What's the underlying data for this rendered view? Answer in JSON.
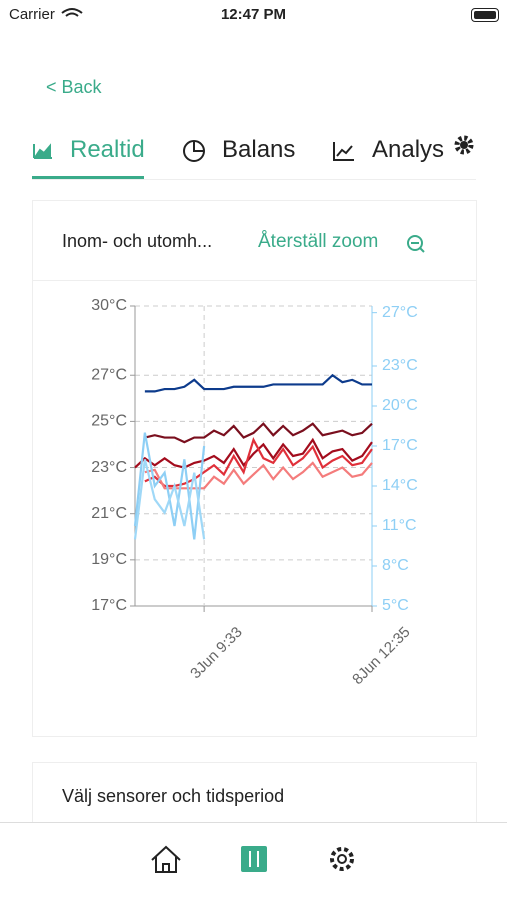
{
  "status_bar": {
    "carrier": "Carrier",
    "time": "12:47 PM"
  },
  "nav": {
    "back": "< Back"
  },
  "tabs": [
    "Realtid",
    "Balans",
    "Analys"
  ],
  "card": {
    "title": "Inom- och utomh...",
    "reset_zoom": "Återställ zoom"
  },
  "chart_data": {
    "type": "line",
    "categories": [
      null,
      null,
      null,
      null,
      null,
      null,
      null,
      "3Jun 9:33",
      null,
      null,
      null,
      null,
      null,
      null,
      null,
      null,
      null,
      null,
      null,
      null,
      null,
      null,
      null,
      null,
      "8Jun 12:35"
    ],
    "ylim": [
      17,
      30
    ],
    "yticks": [
      {
        "value": 17,
        "label": "17°C"
      },
      {
        "value": 19,
        "label": "19°C"
      },
      {
        "value": 21,
        "label": "21°C"
      },
      {
        "value": 23,
        "label": "23°C"
      },
      {
        "value": 25,
        "label": "25°C"
      },
      {
        "value": 27,
        "label": "27°C"
      },
      {
        "value": 30,
        "label": "30°C"
      }
    ],
    "y2lim": [
      5,
      27.5
    ],
    "y2ticks": [
      {
        "value": 5,
        "label": "5°C"
      },
      {
        "value": 8,
        "label": "8°C"
      },
      {
        "value": 11,
        "label": "11°C"
      },
      {
        "value": 14,
        "label": "14°C"
      },
      {
        "value": 17,
        "label": "17°C"
      },
      {
        "value": 20,
        "label": "20°C"
      },
      {
        "value": 23,
        "label": "23°C"
      },
      {
        "value": 27,
        "label": "27°C"
      }
    ],
    "grid": true,
    "series": [
      {
        "color": "#0d3b8c",
        "values": [
          null,
          26.3,
          26.3,
          26.4,
          26.4,
          26.5,
          26.8,
          26.4,
          26.4,
          26.4,
          26.5,
          26.5,
          26.5,
          26.5,
          26.6,
          26.6,
          26.6,
          26.6,
          26.6,
          26.6,
          27.0,
          26.7,
          26.8,
          26.6,
          26.6
        ]
      },
      {
        "color": "#7a0f1e",
        "values": [
          null,
          24.3,
          24.4,
          24.3,
          24.3,
          24.1,
          24.3,
          24.3,
          24.6,
          24.4,
          24.8,
          24.3,
          24.5,
          24.9,
          24.4,
          24.8,
          24.4,
          24.6,
          24.9,
          24.4,
          24.5,
          24.6,
          24.4,
          24.5,
          24.9
        ]
      },
      {
        "color": "#a30c1d",
        "values": [
          23,
          23.4,
          23.1,
          23.4,
          23.1,
          23,
          23.2,
          23.3,
          23.5,
          23.2,
          23.8,
          23.1,
          23.6,
          24,
          23.4,
          24,
          23.5,
          23.6,
          24.2,
          23.4,
          23.7,
          23.8,
          23.3,
          23.5,
          24.1
        ]
      },
      {
        "color": "#e0303a",
        "values": [
          null,
          22.4,
          22.6,
          22.2,
          22.2,
          22.3,
          22.5,
          22.8,
          23.1,
          22.7,
          23.5,
          22.8,
          24.2,
          23.4,
          23.2,
          23.8,
          23.1,
          23.4,
          23.9,
          23.0,
          23.3,
          23.5,
          23.1,
          23.2,
          23.8
        ]
      },
      {
        "color": "#f47c7c",
        "values": [
          null,
          22.8,
          22.9,
          22.1,
          22.1,
          22.1,
          22.1,
          22.1,
          22.6,
          22.3,
          22.9,
          22.3,
          22.7,
          23.1,
          22.5,
          23.0,
          22.5,
          22.8,
          23.2,
          22.6,
          22.8,
          23.0,
          22.6,
          22.7,
          23.2
        ]
      },
      {
        "color": "#8ecff5",
        "axis": "y2",
        "values": [
          11,
          18,
          14,
          15,
          11,
          16,
          10,
          17,
          null,
          null,
          null,
          null,
          null,
          null,
          null,
          null,
          null,
          null,
          null,
          null,
          null,
          null,
          null,
          null,
          null
        ]
      },
      {
        "color": "#9fd8f7",
        "axis": "y2",
        "values": [
          10,
          16,
          13,
          12,
          14,
          11,
          15,
          10,
          null,
          null,
          null,
          null,
          null,
          null,
          null,
          null,
          null,
          null,
          null,
          null,
          null,
          null,
          null,
          null,
          null
        ]
      }
    ]
  },
  "section": {
    "title": "Välj sensorer och tidsperiod"
  }
}
